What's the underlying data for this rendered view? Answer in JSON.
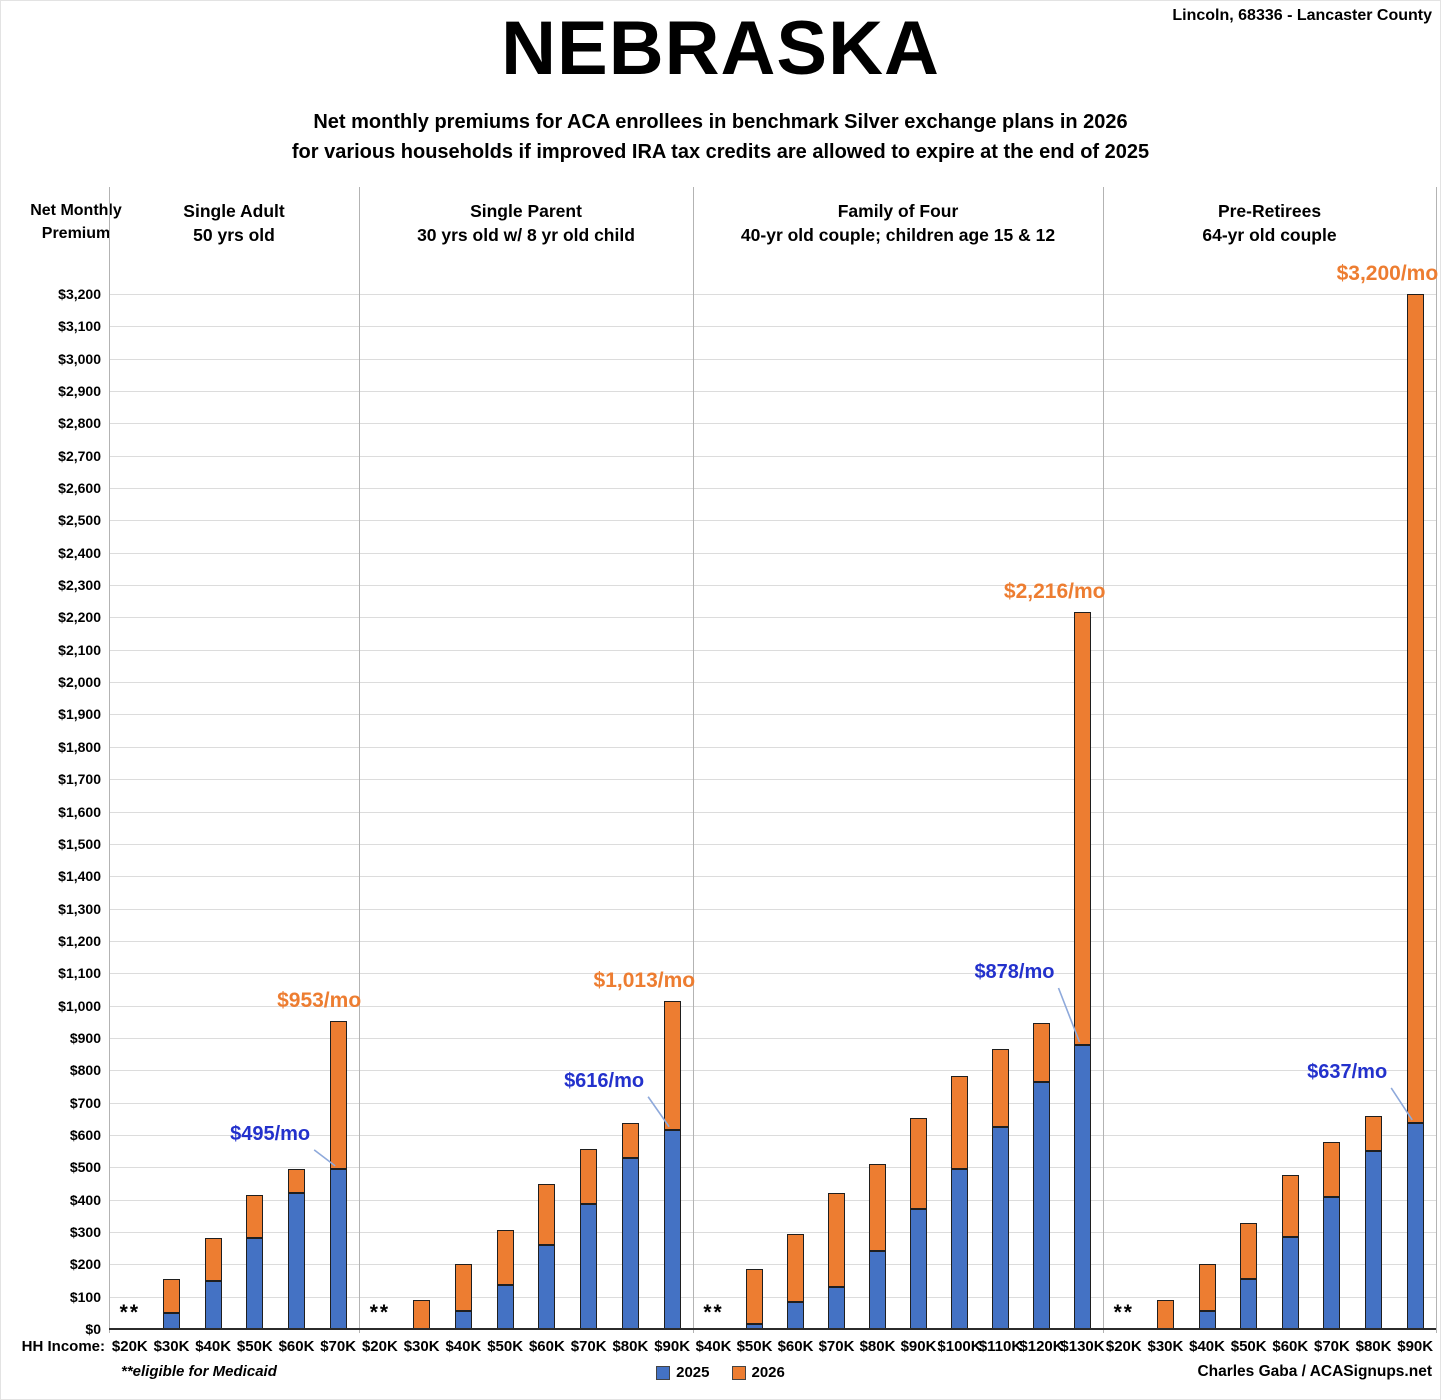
{
  "header": {
    "title": "NEBRASKA",
    "location": "Lincoln, 68336 - Lancaster County",
    "subtitle_line1": "Net monthly premiums for ACA enrollees in benchmark Silver exchange plans in 2026",
    "subtitle_line2": "for various households if improved IRA tax credits are allowed to expire at the end of 2025"
  },
  "axis": {
    "y_title_line1": "Net Monthly",
    "y_title_line2": "Premium",
    "x_prefix": "HH Income:",
    "y_ticks": [
      "$0",
      "$100",
      "$200",
      "$300",
      "$400",
      "$500",
      "$600",
      "$700",
      "$800",
      "$900",
      "$1,000",
      "$1,100",
      "$1,200",
      "$1,300",
      "$1,400",
      "$1,500",
      "$1,600",
      "$1,700",
      "$1,800",
      "$1,900",
      "$2,000",
      "$2,100",
      "$2,200",
      "$2,300",
      "$2,400",
      "$2,500",
      "$2,600",
      "$2,700",
      "$2,800",
      "$2,900",
      "$3,000",
      "$3,100",
      "$3,200"
    ]
  },
  "legend": {
    "items": [
      {
        "label": "2025",
        "color": "#4472C4"
      },
      {
        "label": "2026",
        "color": "#ED7D31"
      }
    ]
  },
  "footnote": "**eligible for Medicaid",
  "medicaid_marker": "**",
  "credit": "Charles Gaba / ACASignups.net",
  "colors": {
    "bar_2025": "#4472C4",
    "bar_2026": "#ED7D31",
    "label_2025": "#2331CC",
    "label_2026": "#ED7D31",
    "leader_line": "#8ea9db"
  },
  "chart_data": {
    "type": "bar",
    "stacked": true,
    "title": "NEBRASKA",
    "ylabel": "Net Monthly Premium",
    "ylim": [
      0,
      3200
    ],
    "ytick_step": 100,
    "grid": true,
    "legend_position": "bottom",
    "series_names": [
      "2025",
      "2026"
    ],
    "note": "v2025 = blue 2025 net premium ($/mo); v2026 = total bar height = 2026 net premium ($/mo); medicaid bars show ** and no bar",
    "groups": [
      {
        "title": "Single Adult",
        "subtitle": "50 yrs old",
        "bars": [
          {
            "income": "$20K",
            "medicaid": true
          },
          {
            "income": "$30K",
            "v2025": 48,
            "v2026": 155
          },
          {
            "income": "$40K",
            "v2025": 148,
            "v2026": 282
          },
          {
            "income": "$50K",
            "v2025": 280,
            "v2026": 415
          },
          {
            "income": "$60K",
            "v2025": 420,
            "v2026": 495
          },
          {
            "income": "$70K",
            "v2025": 495,
            "v2026": 953,
            "label_2025": "$495/mo",
            "label_2026": "$953/mo"
          }
        ]
      },
      {
        "title": "Single Parent",
        "subtitle": "30 yrs old w/ 8 yr old child",
        "bars": [
          {
            "income": "$20K",
            "medicaid": true
          },
          {
            "income": "$30K",
            "v2025": 0,
            "v2026": 90
          },
          {
            "income": "$40K",
            "v2025": 57,
            "v2026": 200
          },
          {
            "income": "$50K",
            "v2025": 135,
            "v2026": 305
          },
          {
            "income": "$60K",
            "v2025": 261,
            "v2026": 447
          },
          {
            "income": "$70K",
            "v2025": 388,
            "v2026": 557
          },
          {
            "income": "$80K",
            "v2025": 528,
            "v2026": 638
          },
          {
            "income": "$90K",
            "v2025": 616,
            "v2026": 1013,
            "label_2025": "$616/mo",
            "label_2026": "$1,013/mo"
          }
        ]
      },
      {
        "title": "Family of Four",
        "subtitle": "40-yr old couple; children age 15 & 12",
        "bars": [
          {
            "income": "$40K",
            "medicaid": true
          },
          {
            "income": "$50K",
            "v2025": 15,
            "v2026": 185
          },
          {
            "income": "$60K",
            "v2025": 82,
            "v2026": 295
          },
          {
            "income": "$70K",
            "v2025": 130,
            "v2026": 420
          },
          {
            "income": "$80K",
            "v2025": 240,
            "v2026": 510
          },
          {
            "income": "$90K",
            "v2025": 372,
            "v2026": 652
          },
          {
            "income": "$100K",
            "v2025": 495,
            "v2026": 782
          },
          {
            "income": "$110K",
            "v2025": 625,
            "v2026": 865
          },
          {
            "income": "$120K",
            "v2025": 765,
            "v2026": 947
          },
          {
            "income": "$130K",
            "v2025": 878,
            "v2026": 2216,
            "label_2025": "$878/mo",
            "label_2026": "$2,216/mo"
          }
        ]
      },
      {
        "title": "Pre-Retirees",
        "subtitle": "64-yr old couple",
        "bars": [
          {
            "income": "$20K",
            "medicaid": true
          },
          {
            "income": "$30K",
            "v2025": 0,
            "v2026": 90
          },
          {
            "income": "$40K",
            "v2025": 57,
            "v2026": 200
          },
          {
            "income": "$50K",
            "v2025": 155,
            "v2026": 327
          },
          {
            "income": "$60K",
            "v2025": 285,
            "v2026": 477
          },
          {
            "income": "$70K",
            "v2025": 408,
            "v2026": 578
          },
          {
            "income": "$80K",
            "v2025": 550,
            "v2026": 660
          },
          {
            "income": "$90K",
            "v2025": 637,
            "v2026": 3200,
            "label_2025": "$637/mo",
            "label_2026": "$3,200/mo"
          }
        ]
      }
    ]
  }
}
